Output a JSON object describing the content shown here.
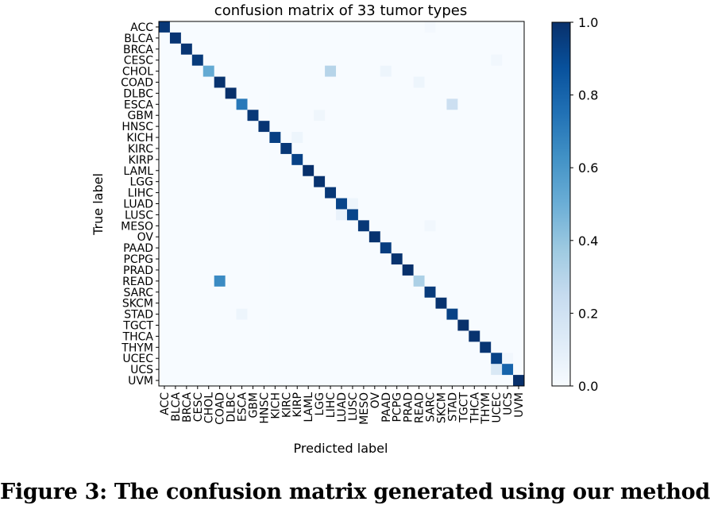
{
  "chart_data": {
    "type": "heatmap",
    "title": "confusion matrix of 33 tumor types",
    "xlabel": "Predicted label",
    "ylabel": "True label",
    "labels": [
      "ACC",
      "BLCA",
      "BRCA",
      "CESC",
      "CHOL",
      "COAD",
      "DLBC",
      "ESCA",
      "GBM",
      "HNSC",
      "KICH",
      "KIRC",
      "KIRP",
      "LAML",
      "LGG",
      "LIHC",
      "LUAD",
      "LUSC",
      "MESO",
      "OV",
      "PAAD",
      "PCPG",
      "PRAD",
      "READ",
      "SARC",
      "SKCM",
      "STAD",
      "TGCT",
      "THCA",
      "THYM",
      "UCEC",
      "UCS",
      "UVM"
    ],
    "diagonal": [
      0.97,
      0.98,
      0.98,
      0.96,
      0.52,
      0.99,
      1.0,
      0.72,
      0.97,
      0.98,
      0.94,
      0.97,
      0.93,
      1.0,
      0.99,
      0.97,
      0.92,
      0.92,
      0.97,
      0.99,
      0.95,
      0.99,
      1.0,
      0.33,
      0.96,
      0.99,
      0.93,
      1.0,
      0.99,
      0.98,
      0.93,
      0.8,
      1.0
    ],
    "off_diagonal": [
      {
        "true": "CHOL",
        "pred": "LIHC",
        "value": 0.3
      },
      {
        "true": "ESCA",
        "pred": "STAD",
        "value": 0.22
      },
      {
        "true": "READ",
        "pred": "COAD",
        "value": 0.65
      },
      {
        "true": "UCS",
        "pred": "UCEC",
        "value": 0.15
      },
      {
        "true": "KICH",
        "pred": "KIRP",
        "value": 0.05
      },
      {
        "true": "LUAD",
        "pred": "LUSC",
        "value": 0.05
      },
      {
        "true": "LUSC",
        "pred": "LUAD",
        "value": 0.07
      },
      {
        "true": "CHOL",
        "pred": "PAAD",
        "value": 0.05
      },
      {
        "true": "COAD",
        "pred": "READ",
        "value": 0.05
      },
      {
        "true": "STAD",
        "pred": "ESCA",
        "value": 0.05
      },
      {
        "true": "GBM",
        "pred": "LGG",
        "value": 0.04
      },
      {
        "true": "UCEC",
        "pred": "UCS",
        "value": 0.03
      },
      {
        "true": "MESO",
        "pred": "SARC",
        "value": 0.03
      },
      {
        "true": "ACC",
        "pred": "SARC",
        "value": 0.02
      },
      {
        "true": "CESC",
        "pred": "UCEC",
        "value": 0.03
      }
    ],
    "colorbar": {
      "cmap": "Blues",
      "range": [
        0,
        1
      ],
      "ticks": [
        0.0,
        0.2,
        0.4,
        0.6,
        0.8,
        1.0
      ],
      "tick_labels": [
        "0.0",
        "0.2",
        "0.4",
        "0.6",
        "0.8",
        "1.0"
      ]
    }
  },
  "caption": "Figure 3: The confusion matrix generated using our method"
}
